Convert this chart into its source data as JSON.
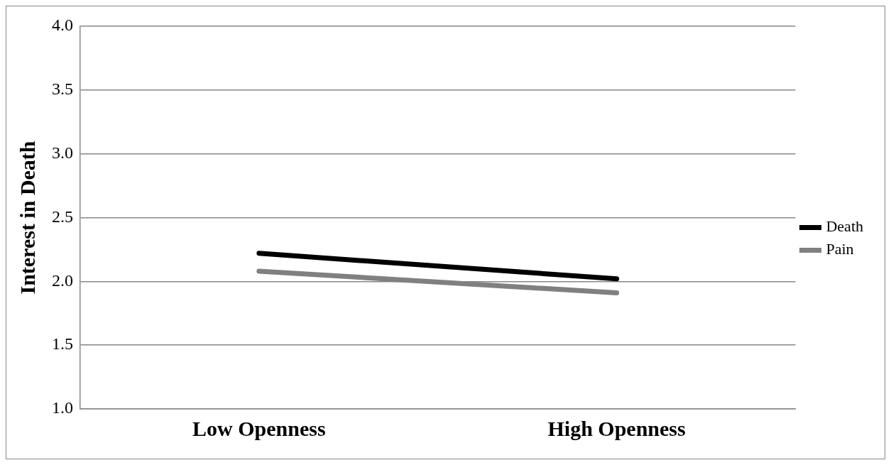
{
  "chart_data": {
    "type": "line",
    "ylabel": "Interest in Death",
    "categories": [
      "Low Openness",
      "High Openness"
    ],
    "series": [
      {
        "name": "Death",
        "color": "#000000",
        "values": [
          2.22,
          2.02
        ]
      },
      {
        "name": "Pain",
        "color": "#808080",
        "values": [
          2.08,
          1.91
        ]
      }
    ],
    "ylim": [
      1.0,
      4.0
    ],
    "yticks": [
      {
        "value": 1,
        "label": "1.0"
      },
      {
        "value": 1.5,
        "label": "1.5"
      },
      {
        "value": 2,
        "label": "2.0"
      },
      {
        "value": 2.5,
        "label": "2.5"
      },
      {
        "value": 3,
        "label": "3.0"
      },
      {
        "value": 3.5,
        "label": "3.5"
      },
      {
        "value": 4,
        "label": "4.0"
      }
    ],
    "grid": "y",
    "legend": "right",
    "line_style": "solid"
  }
}
